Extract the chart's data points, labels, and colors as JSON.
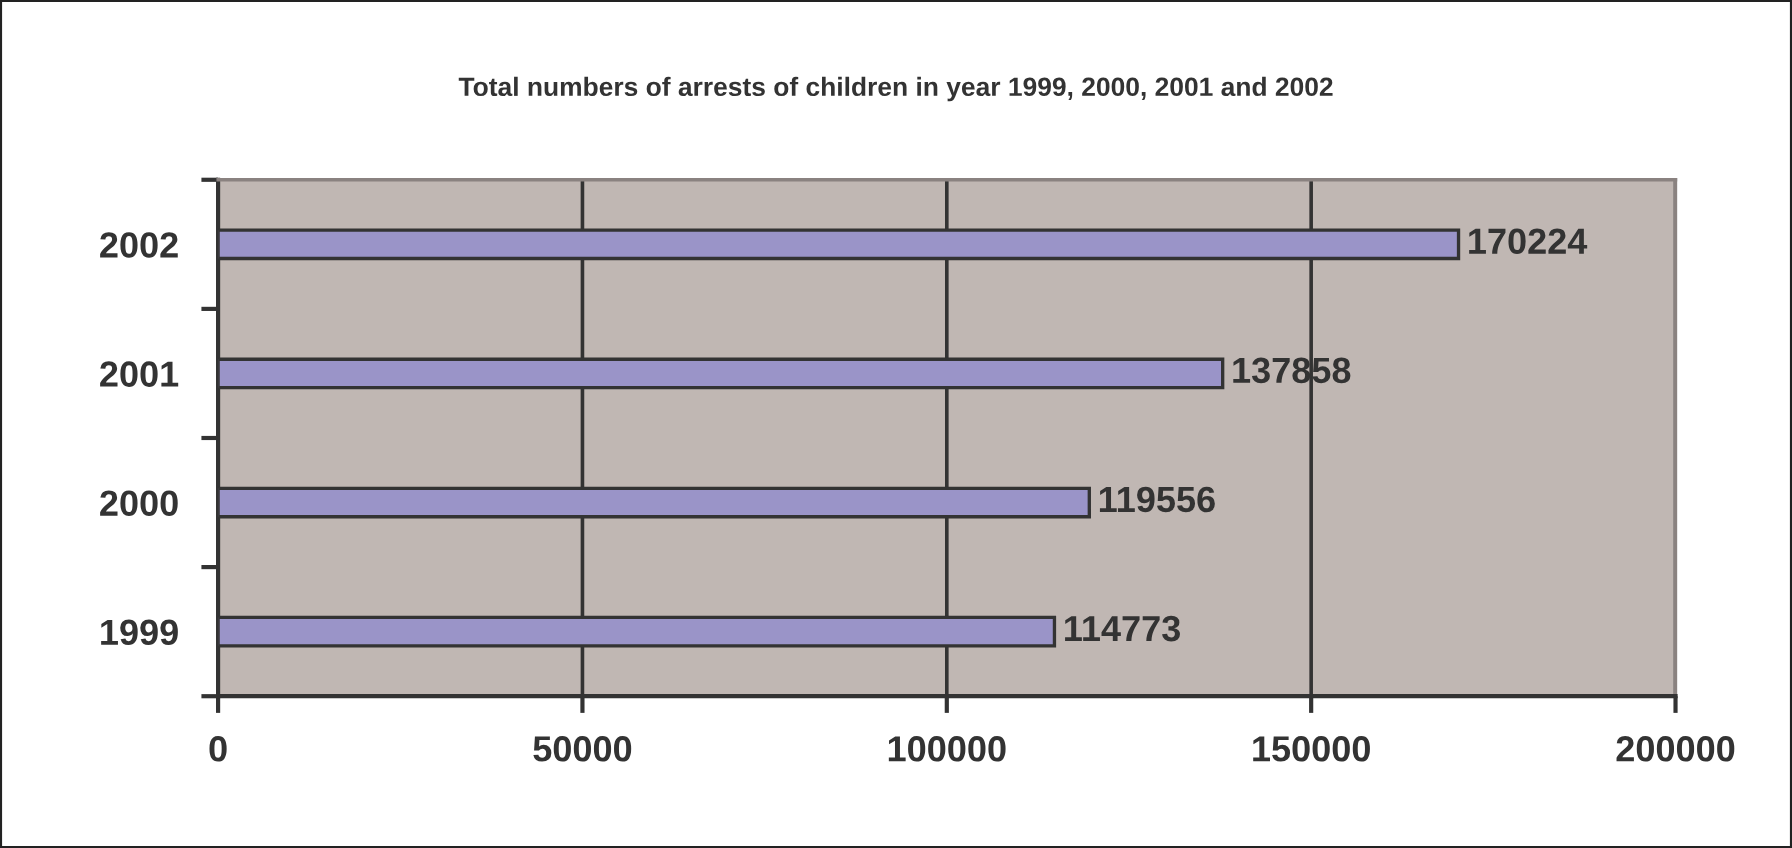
{
  "chart_data": {
    "type": "bar",
    "orientation": "horizontal",
    "title": "Total numbers of arrests of children in year 1999, 2000, 2001 and 2002",
    "categories": [
      "2002",
      "2001",
      "2000",
      "1999"
    ],
    "values": [
      170224,
      137858,
      119556,
      114773
    ],
    "color": "#9a94c8",
    "xlim": [
      0,
      200000
    ],
    "xticks": [
      0,
      50000,
      100000,
      150000,
      200000
    ],
    "grid": "x",
    "data_labels": true
  }
}
